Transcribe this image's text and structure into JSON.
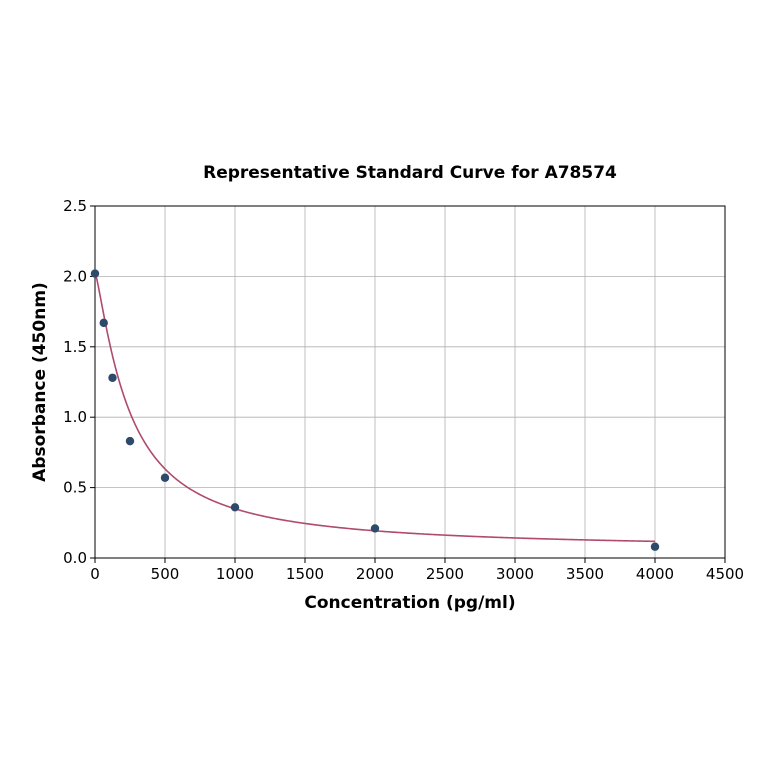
{
  "chart_data": {
    "type": "scatter",
    "title": "Representative Standard Curve for A78574",
    "xlabel": "Concentration (pg/ml)",
    "ylabel": "Absorbance (450nm)",
    "xlim": [
      0,
      4500
    ],
    "ylim": [
      0,
      2.5
    ],
    "xticks": [
      0,
      500,
      1000,
      1500,
      2000,
      2500,
      3000,
      3500,
      4000,
      4500
    ],
    "yticks": [
      0.0,
      0.5,
      1.0,
      1.5,
      2.0,
      2.5
    ],
    "xtick_labels": [
      "0",
      "500",
      "1000",
      "1500",
      "2000",
      "2500",
      "3000",
      "3500",
      "4000",
      "4500"
    ],
    "ytick_labels": [
      "0.0",
      "0.5",
      "1.0",
      "1.5",
      "2.0",
      "2.5"
    ],
    "grid": true,
    "series": [
      {
        "type": "scatter",
        "x": [
          0,
          62.5,
          125,
          250,
          500,
          1000,
          2000,
          4000
        ],
        "y": [
          2.02,
          1.67,
          1.28,
          0.83,
          0.57,
          0.36,
          0.21,
          0.08
        ],
        "color": "#2e4a6b"
      },
      {
        "type": "line",
        "fit": "four-parameter logistic",
        "x_range": [
          0,
          4000
        ],
        "color": "#b04a6e"
      }
    ]
  }
}
